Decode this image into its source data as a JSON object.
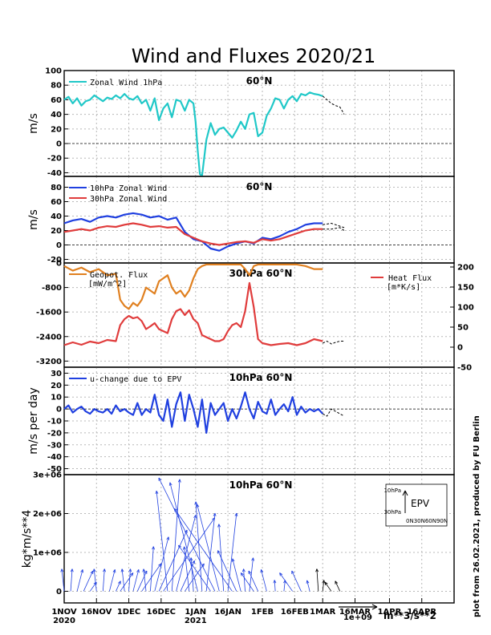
{
  "title": "Wind and Fluxes 2020/21",
  "credit": "plot from 26.02.2021, produced by FU Berlin",
  "x_ticks": [
    "1NOV",
    "16NOV",
    "1DEC",
    "16DEC",
    "1JAN",
    "16JAN",
    "1FEB",
    "16FEB",
    "1MAR",
    "16MAR",
    "1APR",
    "16APR"
  ],
  "x_year_labels": [
    {
      "text": "2020",
      "tick": 0
    },
    {
      "text": "2021",
      "tick": 4
    }
  ],
  "vector_scale": {
    "label": "1e+09",
    "unit": "m**3/s**2"
  },
  "inset": {
    "label": "EPV",
    "y_ticks": [
      "10hPa",
      "30hPa"
    ],
    "x_ticks": "0N30N60N90N"
  },
  "chart_data": [
    {
      "type": "line",
      "panel": "zonal-wind-1hpa",
      "title": "60°N",
      "ylabel": "m/s",
      "ylim": [
        -45,
        100
      ],
      "yticks": [
        -40,
        -20,
        0,
        20,
        40,
        60,
        80,
        100
      ],
      "series": [
        {
          "name": "Zonal Wind 1hPa",
          "color": "#20c8c8",
          "forecast": false,
          "x": [
            0,
            2,
            4,
            6,
            8,
            10,
            12,
            14,
            16,
            18,
            20,
            22,
            24,
            26,
            28,
            30,
            32,
            34,
            36,
            38,
            40,
            42,
            44,
            46,
            48,
            50,
            52,
            54,
            56,
            58,
            60,
            61,
            62,
            63,
            64,
            66,
            68,
            70,
            72,
            74,
            76,
            78,
            80,
            82,
            84,
            86,
            88,
            90,
            92,
            94,
            96,
            98,
            100,
            102,
            104,
            106,
            108,
            110,
            112,
            114,
            116,
            118,
            120
          ],
          "y": [
            60,
            64,
            55,
            62,
            52,
            58,
            60,
            66,
            62,
            58,
            63,
            61,
            66,
            62,
            68,
            62,
            60,
            65,
            55,
            60,
            45,
            62,
            32,
            48,
            55,
            36,
            60,
            58,
            45,
            60,
            55,
            30,
            -10,
            -42,
            -44,
            5,
            28,
            12,
            20,
            22,
            15,
            8,
            18,
            30,
            20,
            40,
            42,
            10,
            15,
            38,
            48,
            62,
            60,
            48,
            60,
            65,
            58,
            68,
            66,
            70,
            68,
            67,
            65
          ]
        },
        {
          "name": "",
          "color": "#000000",
          "forecast": true,
          "x": [
            120,
            122,
            124,
            126,
            128,
            130
          ],
          "y": [
            65,
            60,
            55,
            52,
            50,
            40
          ]
        }
      ]
    },
    {
      "type": "line",
      "panel": "zonal-wind-10-30hpa",
      "title": "60°N",
      "ylabel": "m/s",
      "ylim": [
        -25,
        95
      ],
      "yticks": [
        -20,
        0,
        20,
        40,
        60,
        80
      ],
      "series": [
        {
          "name": "10hPa Zonal Wind",
          "color": "#2040e0",
          "forecast": false,
          "x": [
            0,
            4,
            8,
            12,
            16,
            20,
            24,
            28,
            32,
            36,
            40,
            44,
            48,
            52,
            56,
            60,
            64,
            68,
            72,
            76,
            80,
            84,
            88,
            92,
            96,
            100,
            104,
            108,
            112,
            116,
            120
          ],
          "y": [
            30,
            34,
            36,
            32,
            38,
            40,
            38,
            42,
            44,
            42,
            38,
            40,
            35,
            38,
            18,
            8,
            5,
            -5,
            -8,
            -2,
            2,
            5,
            2,
            10,
            8,
            12,
            18,
            22,
            28,
            30,
            30
          ]
        },
        {
          "name": "30hPa Zonal Wind",
          "color": "#e03c3c",
          "forecast": false,
          "x": [
            0,
            4,
            8,
            12,
            16,
            20,
            24,
            28,
            32,
            36,
            40,
            44,
            48,
            52,
            56,
            60,
            64,
            68,
            72,
            76,
            80,
            84,
            88,
            92,
            96,
            100,
            104,
            108,
            112,
            116,
            120
          ],
          "y": [
            18,
            20,
            22,
            20,
            24,
            26,
            25,
            28,
            30,
            28,
            25,
            26,
            24,
            25,
            15,
            10,
            5,
            2,
            0,
            2,
            4,
            5,
            3,
            8,
            6,
            8,
            12,
            16,
            20,
            22,
            22
          ]
        },
        {
          "name": "",
          "color": "#000000",
          "forecast": true,
          "x": [
            120,
            124,
            128,
            130
          ],
          "y": [
            28,
            30,
            26,
            24
          ]
        },
        {
          "name": "",
          "color": "#000000",
          "forecast": true,
          "x": [
            120,
            124,
            128,
            130
          ],
          "y": [
            22,
            22,
            24,
            20
          ]
        }
      ]
    },
    {
      "type": "line",
      "panel": "fluxes-30hpa",
      "title": "30hPa 60°N",
      "ylabel": "",
      "ylim": [
        -3400,
        0
      ],
      "yticks": [
        0,
        -800,
        -1600,
        -2400,
        -3200
      ],
      "y2lim": [
        -50,
        210
      ],
      "y2ticks": [
        -50,
        0,
        50,
        100,
        150,
        200
      ],
      "series": [
        {
          "name": "Geopot. Flux [mW/m^2]",
          "color": "#e08020",
          "axis": "left",
          "forecast": false,
          "x": [
            0,
            4,
            8,
            12,
            16,
            20,
            24,
            26,
            28,
            30,
            32,
            34,
            36,
            38,
            40,
            42,
            44,
            46,
            48,
            50,
            52,
            54,
            56,
            58,
            60,
            62,
            64,
            66,
            68,
            70,
            72,
            74,
            76,
            78,
            80,
            82,
            84,
            86,
            88,
            90,
            92,
            96,
            100,
            104,
            108,
            112,
            116,
            120
          ],
          "y": [
            -100,
            -250,
            -150,
            -300,
            -200,
            -400,
            -350,
            -1200,
            -1400,
            -1500,
            -1300,
            -1400,
            -1200,
            -800,
            -900,
            -1000,
            -600,
            -500,
            -400,
            -800,
            -1000,
            -900,
            -1100,
            -900,
            -500,
            -200,
            -100,
            -50,
            -50,
            -50,
            -50,
            -50,
            -50,
            -50,
            -50,
            -50,
            -200,
            -400,
            -100,
            -50,
            -50,
            -50,
            -50,
            -50,
            -50,
            -100,
            -200,
            -200
          ]
        },
        {
          "name": "Heat Flux [m*K/s]",
          "color": "#e03c3c",
          "axis": "right",
          "forecast": false,
          "x": [
            0,
            4,
            8,
            12,
            16,
            20,
            24,
            26,
            28,
            30,
            32,
            34,
            36,
            38,
            40,
            42,
            44,
            46,
            48,
            50,
            52,
            54,
            56,
            58,
            60,
            62,
            64,
            66,
            68,
            70,
            72,
            74,
            76,
            78,
            80,
            82,
            84,
            86,
            88,
            90,
            92,
            96,
            100,
            104,
            108,
            112,
            116,
            120
          ],
          "y": [
            5,
            12,
            6,
            14,
            10,
            18,
            15,
            55,
            70,
            78,
            72,
            75,
            65,
            45,
            52,
            60,
            45,
            40,
            35,
            70,
            90,
            95,
            80,
            92,
            70,
            60,
            30,
            25,
            20,
            15,
            15,
            20,
            40,
            55,
            60,
            50,
            90,
            160,
            100,
            20,
            10,
            5,
            8,
            10,
            5,
            10,
            20,
            15
          ]
        },
        {
          "name": "",
          "color": "#000000",
          "axis": "right",
          "forecast": true,
          "x": [
            120,
            122,
            124,
            126,
            128,
            130
          ],
          "y": [
            10,
            15,
            8,
            12,
            15,
            15
          ]
        }
      ]
    },
    {
      "type": "line",
      "panel": "u-change-epv",
      "title": "10hPa 60°N",
      "ylabel": "m/s per day",
      "ylim": [
        -55,
        35
      ],
      "yticks": [
        -50,
        -40,
        -30,
        -20,
        -10,
        0,
        10,
        20,
        30
      ],
      "series": [
        {
          "name": "u-change due to EPV",
          "color": "#2040e0",
          "forecast": false,
          "x": [
            0,
            2,
            4,
            6,
            8,
            10,
            12,
            14,
            16,
            18,
            20,
            22,
            24,
            26,
            28,
            30,
            32,
            34,
            36,
            38,
            40,
            42,
            44,
            46,
            48,
            50,
            52,
            54,
            56,
            58,
            60,
            62,
            64,
            66,
            68,
            70,
            72,
            74,
            76,
            78,
            80,
            82,
            84,
            86,
            88,
            90,
            92,
            94,
            96,
            98,
            100,
            102,
            104,
            106,
            108,
            110,
            112,
            114,
            116,
            118,
            120
          ],
          "y": [
            0,
            3,
            -3,
            0,
            2,
            -2,
            -4,
            0,
            -2,
            -3,
            0,
            -4,
            3,
            -2,
            0,
            -3,
            -5,
            5,
            -5,
            0,
            -3,
            12,
            -5,
            -10,
            8,
            -15,
            4,
            14,
            -10,
            12,
            0,
            -15,
            8,
            -20,
            5,
            -5,
            0,
            5,
            -10,
            0,
            -8,
            2,
            14,
            0,
            -8,
            6,
            -2,
            -4,
            8,
            -5,
            0,
            4,
            -2,
            10,
            -5,
            2,
            -3,
            0,
            -2,
            0,
            -4
          ]
        },
        {
          "name": "",
          "color": "#000000",
          "forecast": true,
          "x": [
            120,
            122,
            124,
            126,
            128,
            130
          ],
          "y": [
            -4,
            -6,
            0,
            -2,
            -4,
            -6
          ]
        }
      ]
    },
    {
      "type": "vector",
      "panel": "epv-vectors",
      "title": "10hPa 60°N",
      "ylabel": "kg*m/s**4",
      "ylim": [
        -300000,
        3000000
      ],
      "yticks": [
        {
          "v": 0,
          "label": "0"
        },
        {
          "v": 1000000,
          "label": "1e+06"
        },
        {
          "v": 2000000,
          "label": "2e+06"
        },
        {
          "v": 3000000,
          "label": "3e+06"
        }
      ]
    }
  ]
}
